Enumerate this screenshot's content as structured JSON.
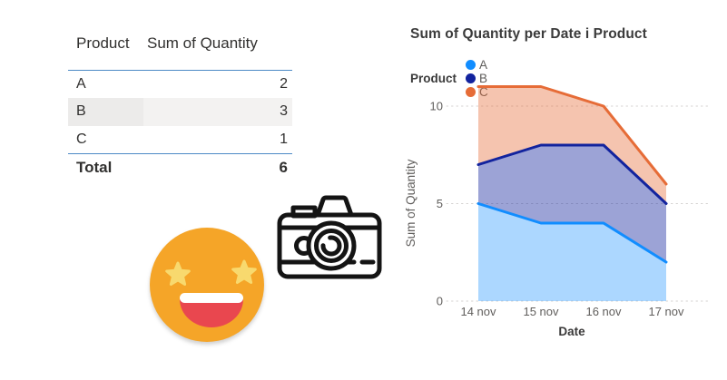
{
  "table": {
    "columns": [
      "Product",
      "Sum of Quantity"
    ],
    "rows": [
      {
        "product": "A",
        "quantity": "2",
        "highlighted": false
      },
      {
        "product": "B",
        "quantity": "3",
        "highlighted": true
      },
      {
        "product": "C",
        "quantity": "1",
        "highlighted": false
      }
    ],
    "total_label": "Total",
    "total_value": "6",
    "divider_color": "#4D8AC6",
    "highlight_color": "#ECEBEA"
  },
  "decorations": {
    "emoji": "star-struck-emoji",
    "camera": "camera-icon",
    "emoji_colors": {
      "face": "#F5A528",
      "star": "#F8D96E",
      "mouth": "#E9474F",
      "teeth": "#FFFFFF"
    },
    "camera_color": "#141414"
  },
  "chart_data": {
    "type": "area",
    "stacked": true,
    "title": "Sum of Quantity per Date i Product",
    "legend_title": "Product",
    "legend_position": "top",
    "categories": [
      "14 nov",
      "15 nov",
      "16 nov",
      "17 nov"
    ],
    "series": [
      {
        "name": "A",
        "values": [
          5,
          4,
          4,
          2
        ],
        "color": "#118DFF",
        "fill": "rgba(17,141,255,0.35)"
      },
      {
        "name": "B",
        "values": [
          2,
          4,
          4,
          3
        ],
        "color": "#12239E",
        "fill": "rgba(18,35,158,0.42)"
      },
      {
        "name": "C",
        "values": [
          4,
          3,
          2,
          1
        ],
        "color": "#E66C37",
        "fill": "rgba(230,108,55,0.40)"
      }
    ],
    "stacked_totals": [
      11,
      11,
      10,
      6
    ],
    "xlabel": "Date",
    "ylabel": "Sum of Quantity",
    "ylim": [
      0,
      11
    ],
    "yticks": [
      0,
      5,
      10
    ],
    "grid": "dotted"
  }
}
